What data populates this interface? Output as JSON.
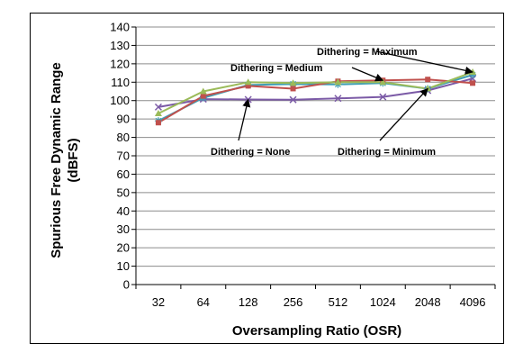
{
  "chart_data": {
    "type": "line",
    "xlabel": "Oversampling Ratio (OSR)",
    "ylabel_line1": "Spurious Free Dynamic Range",
    "ylabel_line2": "(dBFS)",
    "categories": [
      "32",
      "64",
      "128",
      "256",
      "512",
      "1024",
      "2048",
      "4096"
    ],
    "ylim": [
      0,
      140
    ],
    "yticks": [
      "0",
      "10",
      "20",
      "30",
      "40",
      "50",
      "60",
      "70",
      "80",
      "90",
      "100",
      "110",
      "120",
      "130",
      "140"
    ],
    "grid": "horizontal",
    "series": [
      {
        "name": "Dithering = None",
        "color": "#7b5aa6",
        "marker": "x",
        "values": [
          96.5,
          100.8,
          100.6,
          100.5,
          101.2,
          102.0,
          105.5,
          112.0
        ]
      },
      {
        "name": "Dithering = Minimum",
        "color": "#3f9fb5",
        "marker": "star",
        "values": [
          89.0,
          101.5,
          108.5,
          109.0,
          108.8,
          109.5,
          106.5,
          114.0
        ]
      },
      {
        "name": "Dithering = Medium",
        "color": "#c0504d",
        "marker": "square",
        "values": [
          88.0,
          102.5,
          108.0,
          106.5,
          110.5,
          111.0,
          111.5,
          109.5
        ]
      },
      {
        "name": "Dithering = Maximum",
        "color": "#9bbb59",
        "marker": "triangle",
        "values": [
          93.0,
          105.0,
          110.0,
          109.5,
          110.0,
          110.0,
          106.5,
          115.5
        ]
      }
    ],
    "annotations": [
      {
        "text": "Dithering = Maximum",
        "series": 3,
        "point": 7
      },
      {
        "text": "Dithering = Medium",
        "series": 2,
        "point": 5
      },
      {
        "text": "Dithering = None",
        "series": 0,
        "point": 2
      },
      {
        "text": "Dithering = Minimum",
        "series": 1,
        "point": 6
      }
    ]
  }
}
